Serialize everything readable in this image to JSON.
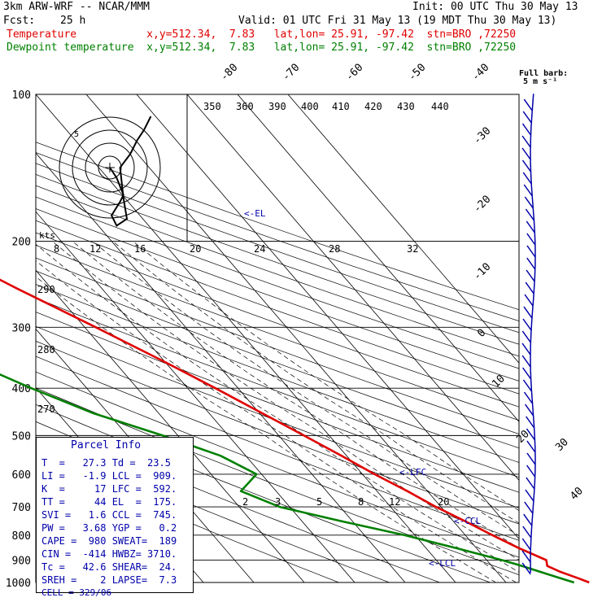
{
  "header": {
    "model": "3km ARW-WRF -- NCAR/MMM",
    "init": "Init: 00 UTC Thu 30 May 13",
    "fcst_label": "Fcst:",
    "fcst_value": "25 h",
    "valid": "Valid: 01 UTC Fri 31 May 13 (19 MDT Thu 30 May 13)",
    "temp_line": "Temperature           x,y=512.34,  7.83   lat,lon= 25.91, -97.42  stn=BRO ,72250",
    "dewp_line": "Dewpoint temperature  x,y=512.34,  7.83   lat,lon= 25.91, -97.42  stn=BRO ,72250"
  },
  "parcel_info": {
    "title": "Parcel Info",
    "rows": [
      "T  =   27.3 Td =  23.5",
      "LI =   -1.9 LCL =  909.",
      "K  =     17 LFC =  592.",
      "TT =     44 EL  =  175.",
      "SVI =   1.6 CCL =  745.",
      "PW =   3.68 YGP =   0.2",
      "CAPE =  980 SWEAT=  189",
      "CIN =  -414 HWBZ= 3710.",
      "Tc =   42.6 SHEAR=  24.",
      "SREH =    2 LAPSE=  7.3",
      "CELL = 329/06"
    ]
  },
  "barb_key": {
    "line1": "Full barb:",
    "line2": "5 m s⁻¹"
  },
  "hodograph": {
    "units": "kts",
    "ring_labels": [
      "5"
    ]
  },
  "colors": {
    "temperature": "#e00000",
    "dewpoint": "#008000",
    "wind": "#0000aa"
  },
  "chart_data": {
    "type": "line",
    "pressure_levels": [
      100,
      200,
      300,
      400,
      500,
      600,
      700,
      800,
      900,
      1000
    ],
    "skewed_isotherm_labels": [
      "-80",
      "-70",
      "-60",
      "-50",
      "-40",
      "-30",
      "-20",
      "-10",
      "0",
      "10",
      "20",
      "30",
      "40"
    ],
    "theta_labels": [
      "350",
      "360",
      "390",
      "400",
      "410",
      "420",
      "430",
      "440",
      "290",
      "280",
      "270"
    ],
    "mixing_ratio_labels": [
      "8",
      "12",
      "16",
      "20",
      "24",
      "28",
      "32"
    ],
    "mixing_ratio_labels_low": [
      "2",
      "3",
      "5",
      "8",
      "12",
      "20"
    ],
    "annotations": [
      "<-EL",
      "<-LFC",
      "<-CCL",
      "<-LCL"
    ],
    "series": [
      {
        "name": "Temperature",
        "p": [
          1000,
          980,
          950,
          925,
          900,
          850,
          800,
          750,
          700,
          650,
          600,
          550,
          500,
          450,
          400,
          350,
          300,
          250,
          200,
          175,
          150,
          125,
          100
        ],
        "t": [
          26.5,
          25.0,
          22.5,
          21.0,
          21.8,
          18.4,
          15.4,
          12.4,
          9.0,
          6.0,
          2.4,
          -1.0,
          -5.0,
          -9.5,
          -14.5,
          -20.5,
          -27.8,
          -36.8,
          -47.0,
          -53.0,
          -61.0,
          -66.0,
          -70.0
        ]
      },
      {
        "name": "Dewpoint temperature",
        "p": [
          1000,
          980,
          950,
          925,
          900,
          850,
          800,
          750,
          700,
          650,
          600,
          550,
          500,
          450,
          400,
          350,
          300,
          250,
          200,
          150,
          100
        ],
        "t": [
          23.5,
          21.5,
          18.5,
          16.0,
          13.0,
          6.0,
          -2.0,
          -12.0,
          -22.0,
          -27.0,
          -21.0,
          -25.0,
          -33.0,
          -43.0,
          -51.0,
          -59.0,
          -64.0,
          -68.0,
          -72.0,
          -78.0,
          -85.0
        ]
      }
    ],
    "hodograph": {
      "u": [
        0.0,
        2.0,
        4.0,
        3.0,
        0.5,
        2.0,
        5.0,
        4.0,
        3.0,
        6.0,
        8.0,
        10.0,
        11.0,
        12.0
      ],
      "v": [
        0.0,
        -3.0,
        -8.0,
        -10.0,
        -14.0,
        -17.0,
        -15.0,
        -9.0,
        0.0,
        4.0,
        8.0,
        11.0,
        13.0,
        15.0
      ]
    }
  }
}
